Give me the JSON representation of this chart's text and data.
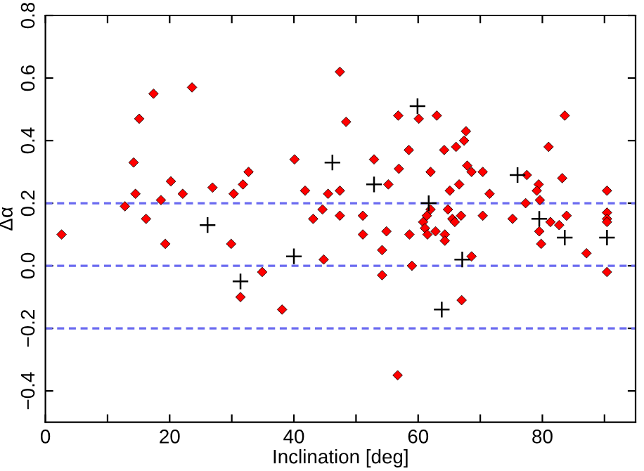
{
  "chart_data": {
    "type": "scatter",
    "xlabel": "Inclination [deg]",
    "ylabel": "Δα",
    "xlim": [
      0,
      95
    ],
    "ylim": [
      -0.5,
      0.8
    ],
    "xticks": [
      0,
      {
        "value": 10,
        "label": null
      },
      20,
      {
        "value": 30,
        "label": null
      },
      40,
      {
        "value": 50,
        "label": null
      },
      60,
      {
        "value": 70,
        "label": null
      },
      80,
      {
        "value": 90,
        "label": null
      }
    ],
    "yticks": [
      {
        "value": -0.4,
        "label": "−0.4"
      },
      {
        "value": -0.2,
        "label": "−0.2"
      },
      {
        "value": 0,
        "label": "0.0"
      },
      {
        "value": 0.2,
        "label": "0.2"
      },
      {
        "value": 0.4,
        "label": "0.4"
      },
      {
        "value": 0.6,
        "label": "0.6"
      },
      {
        "value": 0.8,
        "label": "0.8"
      }
    ],
    "grid": false,
    "ref_lines": [
      {
        "axis": "y",
        "value": 0.2,
        "color": "#6a6af0",
        "line_style": "dashed"
      },
      {
        "axis": "y",
        "value": 0,
        "color": "#6a6af0",
        "line_style": "dashed"
      },
      {
        "axis": "y",
        "value": -0.2,
        "color": "#6a6af0",
        "line_style": "dashed"
      }
    ],
    "series": [
      {
        "color": "#ff0000",
        "marker": "diamond",
        "x": [
          2.6,
          12.8,
          14.2,
          14.5,
          15.1,
          16.2,
          17.4,
          18.6,
          20.2,
          22.1,
          23.6,
          26.9,
          30.3,
          31.8,
          32.7,
          40.1,
          41.8,
          43.1,
          44.6,
          19.3,
          29.9,
          31.4,
          34.9,
          38.1,
          44.8,
          47.4,
          48.4,
          60.1,
          56.8,
          63.0,
          67.7,
          67.4,
          66.1,
          64.2,
          58.5,
          52.9,
          56.9,
          62.0,
          67.9,
          68.6,
          70.4,
          55.2,
          66.6,
          65.1,
          71.5,
          81.0,
          83.6,
          77.5,
          83.2,
          79.4,
          79.1,
          79.6,
          77.3,
          90.4,
          45.5,
          47.4,
          47.4,
          51.1,
          62.0,
          64.8,
          66.9,
          70.4,
          75.2,
          83.9,
          90.4,
          90.4,
          90.4,
          65.5,
          65.9,
          61.4,
          60.8,
          61.1,
          81.3,
          82.7,
          79.5,
          51.1,
          54.9,
          58.6,
          61.5,
          62.8,
          64.3,
          64.3,
          54.2,
          59.0,
          68.6,
          54.2,
          67.0,
          56.7,
          79.8,
          87.1,
          90.4
        ],
        "values": [
          0.1,
          0.19,
          0.33,
          0.23,
          0.47,
          0.15,
          0.55,
          0.21,
          0.27,
          0.23,
          0.57,
          0.25,
          0.23,
          0.26,
          0.3,
          0.34,
          0.24,
          0.15,
          0.18,
          0.07,
          0.07,
          -0.1,
          -0.02,
          -0.14,
          0.02,
          0.62,
          0.46,
          0.47,
          0.48,
          0.48,
          0.43,
          0.4,
          0.38,
          0.37,
          0.37,
          0.34,
          0.31,
          0.3,
          0.32,
          0.3,
          0.3,
          0.26,
          0.26,
          0.24,
          0.23,
          0.38,
          0.48,
          0.29,
          0.28,
          0.26,
          0.24,
          0.21,
          0.2,
          0.24,
          0.23,
          0.24,
          0.16,
          0.16,
          0.18,
          0.18,
          0.16,
          0.16,
          0.15,
          0.16,
          0.17,
          0.15,
          0.14,
          0.15,
          0.14,
          0.16,
          0.14,
          0.12,
          0.14,
          0.13,
          0.11,
          0.1,
          0.11,
          0.1,
          0.1,
          0.11,
          0.1,
          0.08,
          0.05,
          0.0,
          0.03,
          -0.03,
          -0.11,
          -0.35,
          0.07,
          0.04,
          -0.02
        ]
      },
      {
        "color": "#000000",
        "marker": "cross",
        "x": [
          26.1,
          31.4,
          40.0,
          46.2,
          59.9,
          52.9,
          76.0,
          61.7,
          79.5,
          83.6,
          90.4,
          67.1,
          63.8
        ],
        "values": [
          0.13,
          -0.05,
          0.03,
          0.33,
          0.51,
          0.26,
          0.29,
          0.2,
          0.15,
          0.09,
          0.09,
          0.02,
          -0.14
        ]
      }
    ]
  }
}
